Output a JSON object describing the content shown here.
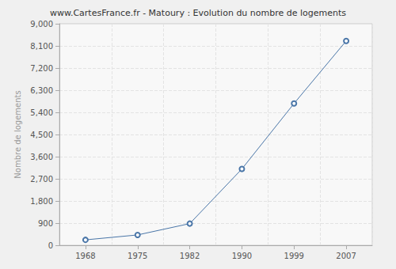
{
  "chart_data": {
    "type": "line",
    "title": "www.CartesFrance.fr - Matoury : Evolution du nombre de logements",
    "y_label": "Nombre de logements",
    "categories": [
      "1968",
      "1975",
      "1982",
      "1990",
      "1999",
      "2007"
    ],
    "values": [
      220,
      420,
      880,
      3100,
      5760,
      8300
    ],
    "color": "#4a76a8",
    "marker": "circle",
    "ylim": [
      0,
      9000
    ],
    "yticks": [
      0,
      900,
      1800,
      2700,
      3600,
      4500,
      5400,
      6300,
      7200,
      8100,
      9000
    ],
    "grid": true
  }
}
